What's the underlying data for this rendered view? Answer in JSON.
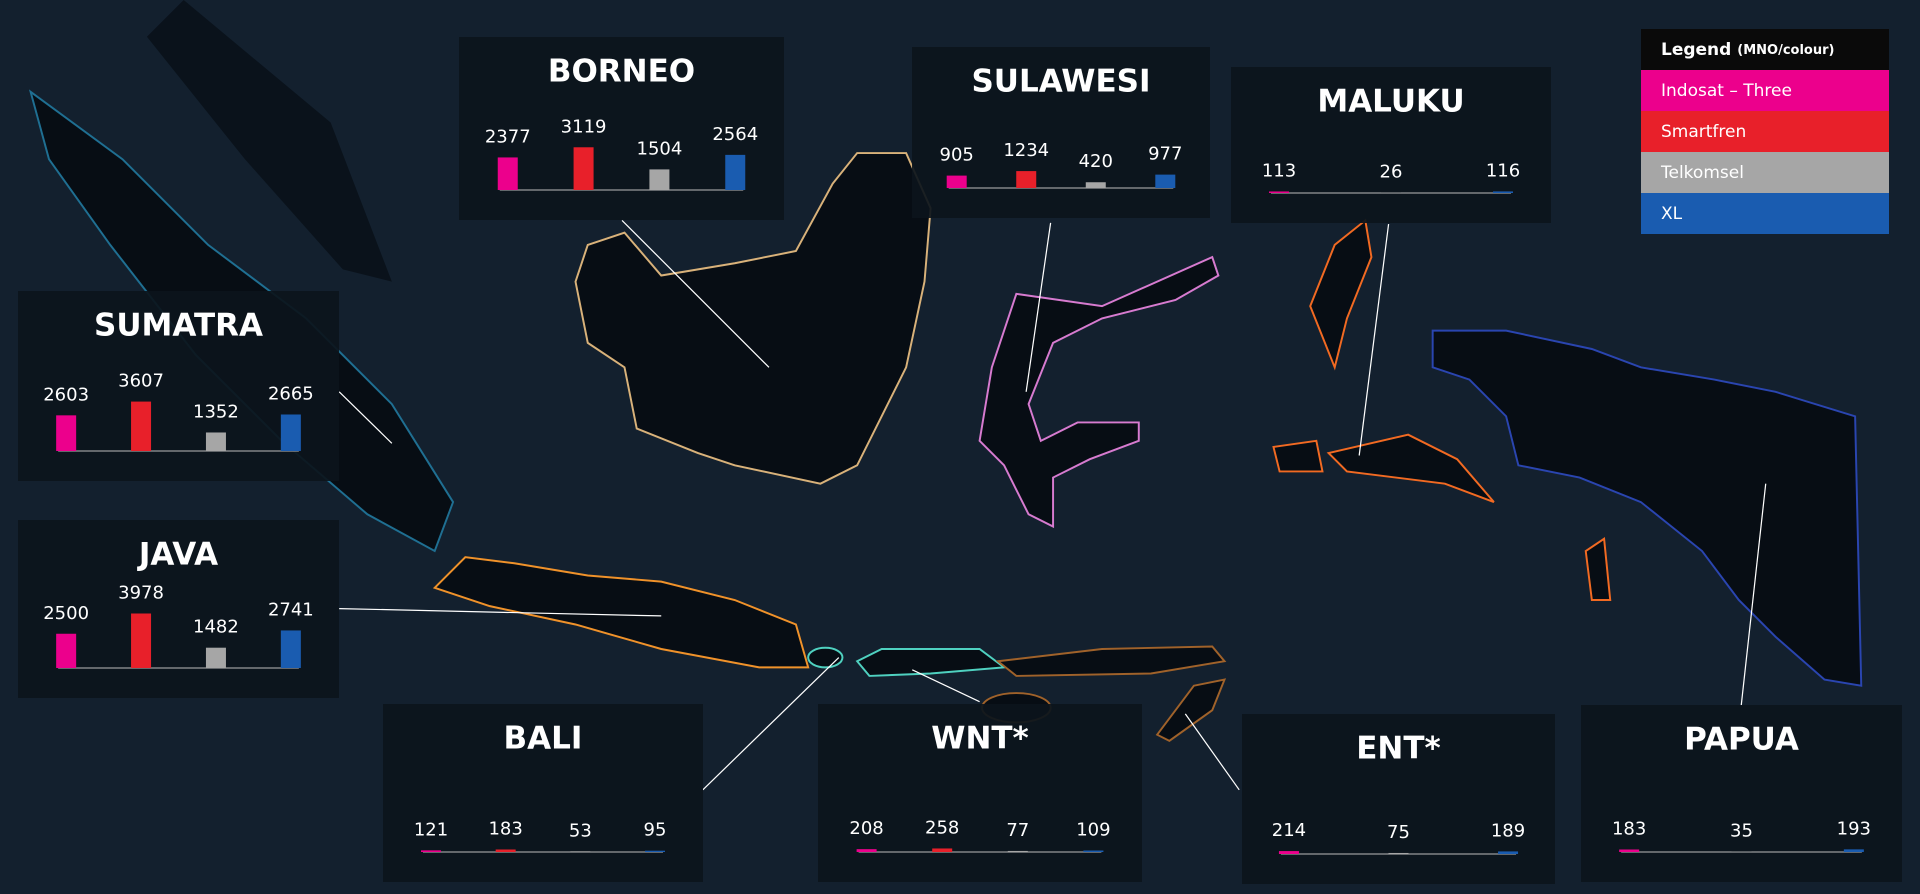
{
  "legend": {
    "title": "Legend",
    "subtitle": "(MNO/colour)",
    "items": [
      {
        "name": "Indosat – Three",
        "color": "#ec008c"
      },
      {
        "name": "Smartfren",
        "color": "#e8202a"
      },
      {
        "name": "Telkomsel",
        "color": "#a6a6a6"
      },
      {
        "name": "XL",
        "color": "#1a5cb0"
      }
    ]
  },
  "regions": [
    {
      "name": "BORNEO",
      "values": [
        2377,
        3119,
        1504,
        2564
      ]
    },
    {
      "name": "SULAWESI",
      "values": [
        905,
        1234,
        420,
        977
      ]
    },
    {
      "name": "MALUKU",
      "values": [
        113,
        null,
        26,
        116
      ]
    },
    {
      "name": "SUMATRA",
      "values": [
        2603,
        3607,
        1352,
        2665
      ]
    },
    {
      "name": "JAVA",
      "values": [
        2500,
        3978,
        1482,
        2741
      ]
    },
    {
      "name": "BALI",
      "values": [
        121,
        183,
        53,
        95
      ]
    },
    {
      "name": "WNT*",
      "values": [
        208,
        258,
        77,
        109
      ]
    },
    {
      "name": "ENT*",
      "values": [
        214,
        null,
        75,
        189
      ]
    },
    {
      "name": "PAPUA",
      "values": [
        183,
        null,
        35,
        193
      ]
    }
  ]
}
